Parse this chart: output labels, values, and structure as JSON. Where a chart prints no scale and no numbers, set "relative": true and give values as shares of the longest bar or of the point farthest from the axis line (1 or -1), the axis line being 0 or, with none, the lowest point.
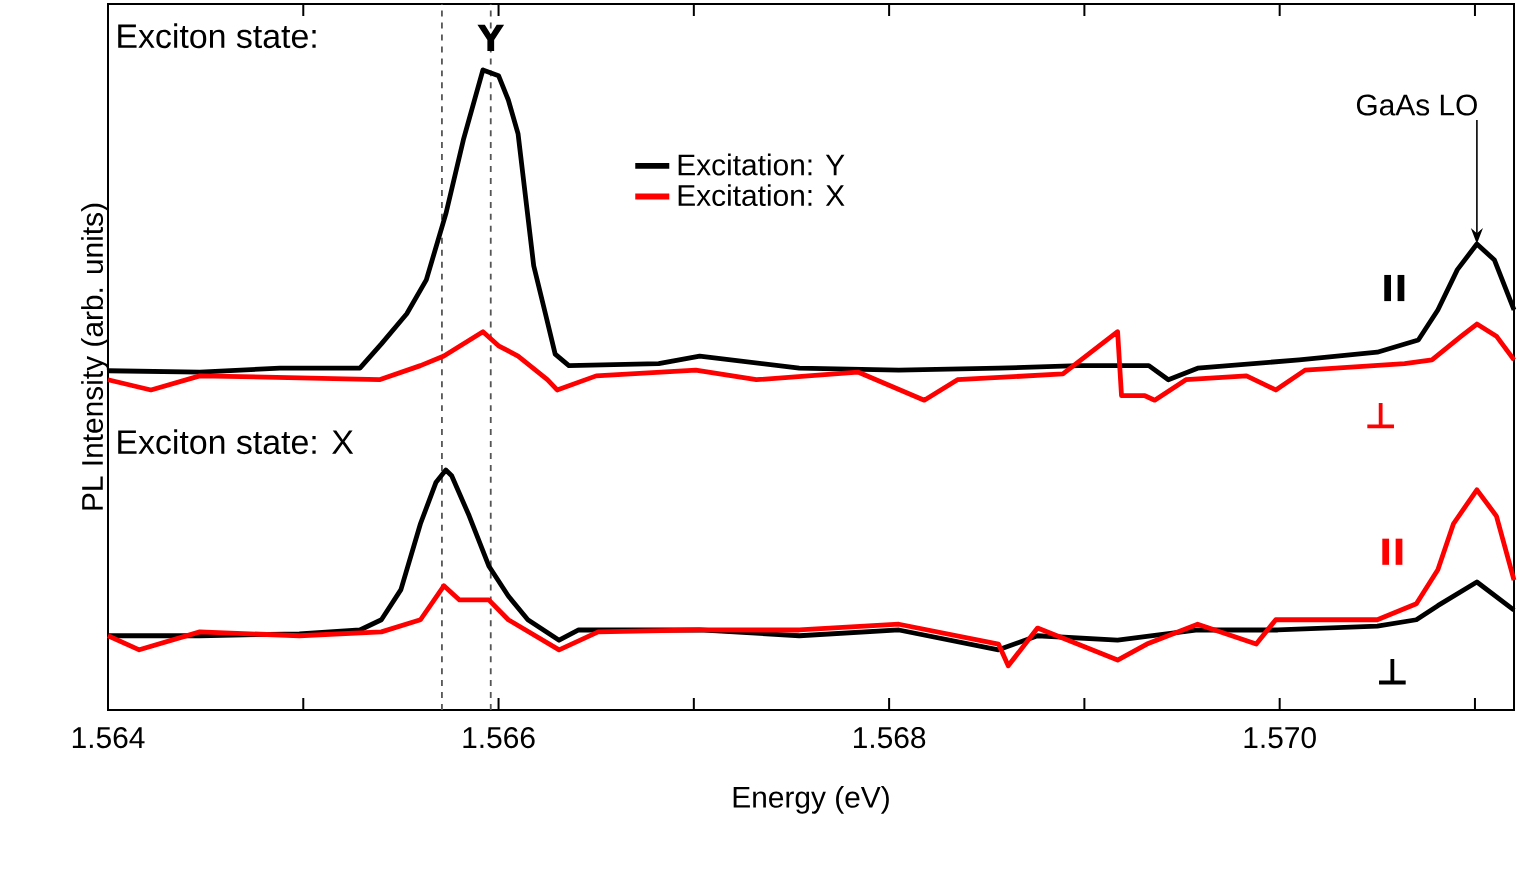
{
  "chart_data": {
    "type": "line",
    "relative": true,
    "xlabel": "Energy (eV)",
    "ylabel": "PL Intensity (arb. units)",
    "xlim": [
      1.564,
      1.5712
    ],
    "xticks": [
      1.564,
      {
        "value": 1.565,
        "label": null
      },
      1.566,
      {
        "value": 1.567,
        "label": null
      },
      1.568,
      {
        "value": 1.569,
        "label": null
      },
      {
        "value": 1.57,
        "label": "1.570"
      },
      {
        "value": 1.571,
        "label": null
      }
    ],
    "legend": "top",
    "line_style": "solid",
    "marker": "none",
    "grid": false,
    "series": [
      {
        "name": "Excitation: Y",
        "color": "#000000",
        "x": [
          1.564,
          1.56447,
          1.56488,
          1.56529,
          1.5654,
          1.56553,
          1.56563,
          1.56573,
          1.56582,
          1.56592,
          1.566,
          1.56605,
          1.5661,
          1.56618,
          1.56624,
          1.56629,
          1.56636,
          1.56682,
          1.56703,
          1.56754,
          1.56805,
          1.56856,
          1.56897,
          1.56933,
          1.56943,
          1.56958,
          1.5701,
          1.5705,
          1.57071,
          1.57081,
          1.57091,
          1.57101,
          1.5711,
          1.5712
        ],
        "values": [
          0.53,
          0.528,
          0.534,
          0.534,
          0.572,
          0.619,
          0.672,
          0.775,
          0.891,
          1.0,
          0.991,
          0.953,
          0.9,
          0.694,
          0.619,
          0.556,
          0.538,
          0.541,
          0.553,
          0.534,
          0.531,
          0.534,
          0.538,
          0.538,
          0.516,
          0.534,
          0.547,
          0.559,
          0.578,
          0.625,
          0.688,
          0.728,
          0.703,
          0.625
        ]
      },
      {
        "name": "Excitation: X",
        "color": "#ff0000",
        "x": [
          1.564,
          1.56422,
          1.56447,
          1.56498,
          1.56539,
          1.5656,
          1.56572,
          1.56592,
          1.566,
          1.5661,
          1.56625,
          1.5663,
          1.5665,
          1.56701,
          1.56732,
          1.56784,
          1.56818,
          1.56835,
          1.56889,
          1.56917,
          1.56919,
          1.56931,
          1.56936,
          1.56952,
          1.56983,
          1.56998,
          1.57013,
          1.57064,
          1.57078,
          1.57093,
          1.57101,
          1.57111,
          1.5712
        ],
        "values": [
          0.516,
          0.5,
          0.522,
          0.519,
          0.516,
          0.538,
          0.553,
          0.591,
          0.569,
          0.553,
          0.516,
          0.5,
          0.522,
          0.531,
          0.516,
          0.528,
          0.484,
          0.516,
          0.525,
          0.591,
          0.491,
          0.491,
          0.484,
          0.516,
          0.522,
          0.5,
          0.531,
          0.541,
          0.547,
          0.584,
          0.603,
          0.584,
          0.547
        ]
      },
      {
        "color": "#000000",
        "x": [
          1.564,
          1.56447,
          1.56498,
          1.56529,
          1.5654,
          1.5655,
          1.5656,
          1.56568,
          1.56573,
          1.56576,
          1.56585,
          1.56595,
          1.56605,
          1.56615,
          1.56631,
          1.56641,
          1.56703,
          1.56754,
          1.56805,
          1.56856,
          1.56876,
          1.56917,
          1.56958,
          1.56999,
          1.5705,
          1.5707,
          1.57081,
          1.57101,
          1.5712
        ],
        "values": [
          0.116,
          0.116,
          0.119,
          0.125,
          0.141,
          0.188,
          0.291,
          0.356,
          0.375,
          0.366,
          0.303,
          0.225,
          0.178,
          0.141,
          0.109,
          0.125,
          0.125,
          0.116,
          0.125,
          0.094,
          0.116,
          0.109,
          0.125,
          0.125,
          0.131,
          0.141,
          0.163,
          0.2,
          0.156
        ]
      },
      {
        "color": "#ff0000",
        "x": [
          1.564,
          1.56416,
          1.56447,
          1.56498,
          1.5654,
          1.5656,
          1.56572,
          1.5658,
          1.56595,
          1.56605,
          1.56631,
          1.56651,
          1.56703,
          1.56754,
          1.56805,
          1.56856,
          1.56861,
          1.56876,
          1.56917,
          1.56932,
          1.56958,
          1.56988,
          1.56998,
          1.5705,
          1.5707,
          1.57081,
          1.57089,
          1.57101,
          1.57111,
          1.5712
        ],
        "values": [
          0.116,
          0.094,
          0.122,
          0.116,
          0.122,
          0.141,
          0.194,
          0.172,
          0.172,
          0.141,
          0.094,
          0.122,
          0.125,
          0.125,
          0.134,
          0.103,
          0.069,
          0.128,
          0.078,
          0.103,
          0.134,
          0.103,
          0.141,
          0.141,
          0.166,
          0.219,
          0.291,
          0.344,
          0.303,
          0.203
        ]
      }
    ],
    "ref_lines": [
      {
        "axis": "x",
        "value": 1.56571,
        "color": "#555555",
        "line_style": "dashed"
      },
      {
        "axis": "x",
        "value": 1.56596,
        "color": "#555555",
        "line_style": "dashed"
      }
    ],
    "annotations": [
      "Exciton state:",
      {
        "text": "Y",
        "x": 1.56596,
        "y": 1.05
      },
      "Exciton state: X",
      {
        "text": "GaAs LO",
        "x": 1.57101,
        "y": 0.728
      },
      {
        "text": "II",
        "x": 1.57071,
        "y": 0.578
      },
      {
        "text": "⊥",
        "x": 1.57064,
        "y": 0.541
      },
      {
        "text": "II",
        "x": 1.5707,
        "y": 0.166
      },
      {
        "text": "⊥",
        "x": 1.5707,
        "y": 0.141
      }
    ]
  }
}
